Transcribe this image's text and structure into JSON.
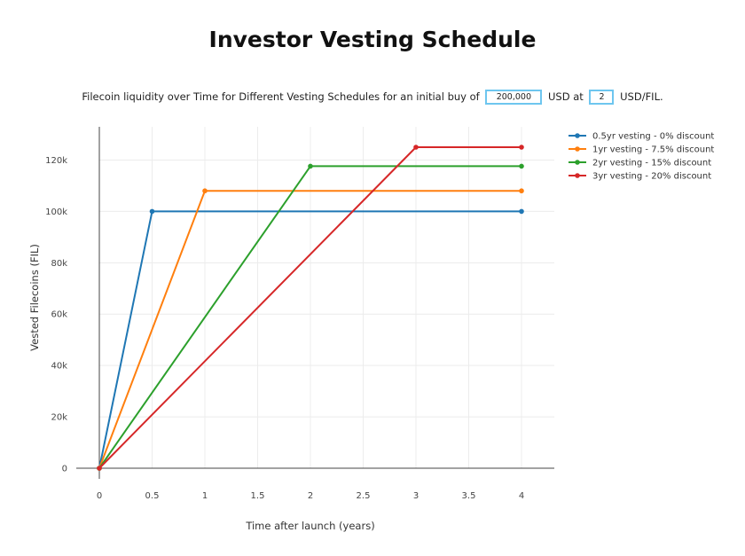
{
  "page": {
    "title": "Investor Vesting Schedule",
    "subtitle_prefix": "Filecoin liquidity over Time for Different Vesting Schedules for an initial buy of",
    "amount_value": "200,000",
    "subtitle_middle": "USD at",
    "price_value": "2",
    "subtitle_suffix": "USD/FIL."
  },
  "chart_data": {
    "type": "line",
    "xlabel": "Time after launch (years)",
    "ylabel": "Vested Filecoins (FIL)",
    "xlim": [
      0,
      4
    ],
    "ylim": [
      0,
      130000
    ],
    "xticks": [
      0,
      0.5,
      1,
      1.5,
      2,
      2.5,
      3,
      3.5,
      4
    ],
    "xtick_labels": [
      "0",
      "0.5",
      "1",
      "1.5",
      "2",
      "2.5",
      "3",
      "3.5",
      "4"
    ],
    "yticks": [
      0,
      20000,
      40000,
      60000,
      80000,
      100000,
      120000
    ],
    "ytick_labels": [
      "0",
      "20k",
      "40k",
      "60k",
      "80k",
      "100k",
      "120k"
    ],
    "grid": true,
    "legend_position": "top-right",
    "series": [
      {
        "name": "0.5yr vesting - 0% discount",
        "color": "#1f77b4",
        "x": [
          0,
          0.5,
          4
        ],
        "y": [
          0,
          100000,
          100000
        ]
      },
      {
        "name": "1yr vesting - 7.5% discount",
        "color": "#ff7f0e",
        "x": [
          0,
          1,
          4
        ],
        "y": [
          0,
          108000,
          108000
        ]
      },
      {
        "name": "2yr vesting - 15% discount",
        "color": "#2ca02c",
        "x": [
          0,
          2,
          4
        ],
        "y": [
          0,
          117600,
          117600
        ]
      },
      {
        "name": "3yr vesting - 20% discount",
        "color": "#d62728",
        "x": [
          0,
          3,
          4
        ],
        "y": [
          0,
          125000,
          125000
        ]
      }
    ]
  }
}
